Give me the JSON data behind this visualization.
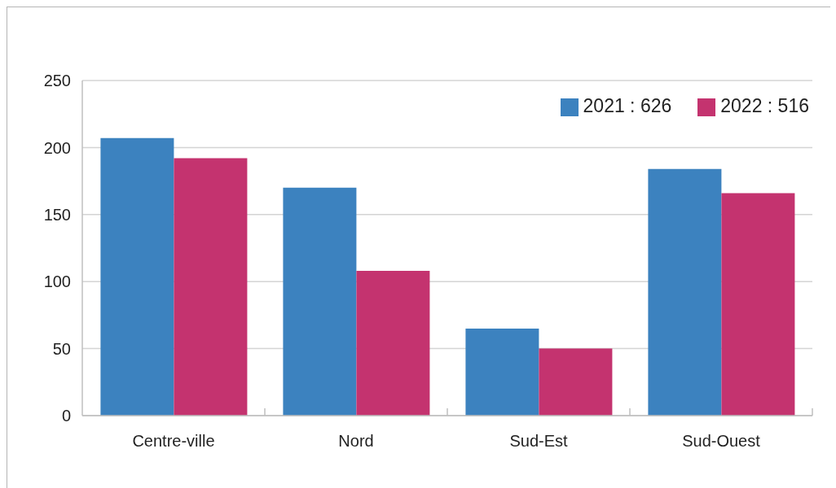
{
  "chart_data": {
    "type": "bar",
    "categories": [
      "Centre-ville",
      "Nord",
      "Sud-Est",
      "Sud-Ouest"
    ],
    "series": [
      {
        "name": "2021 : 626",
        "color": "#3c82bf",
        "values": [
          207,
          170,
          65,
          184
        ]
      },
      {
        "name": "2022 : 516",
        "color": "#c4336f",
        "values": [
          192,
          108,
          50,
          166
        ]
      }
    ],
    "ylim": [
      0,
      250
    ],
    "yticks": [
      0,
      50,
      100,
      150,
      200,
      250
    ],
    "grid": "y",
    "legend": "top right"
  }
}
